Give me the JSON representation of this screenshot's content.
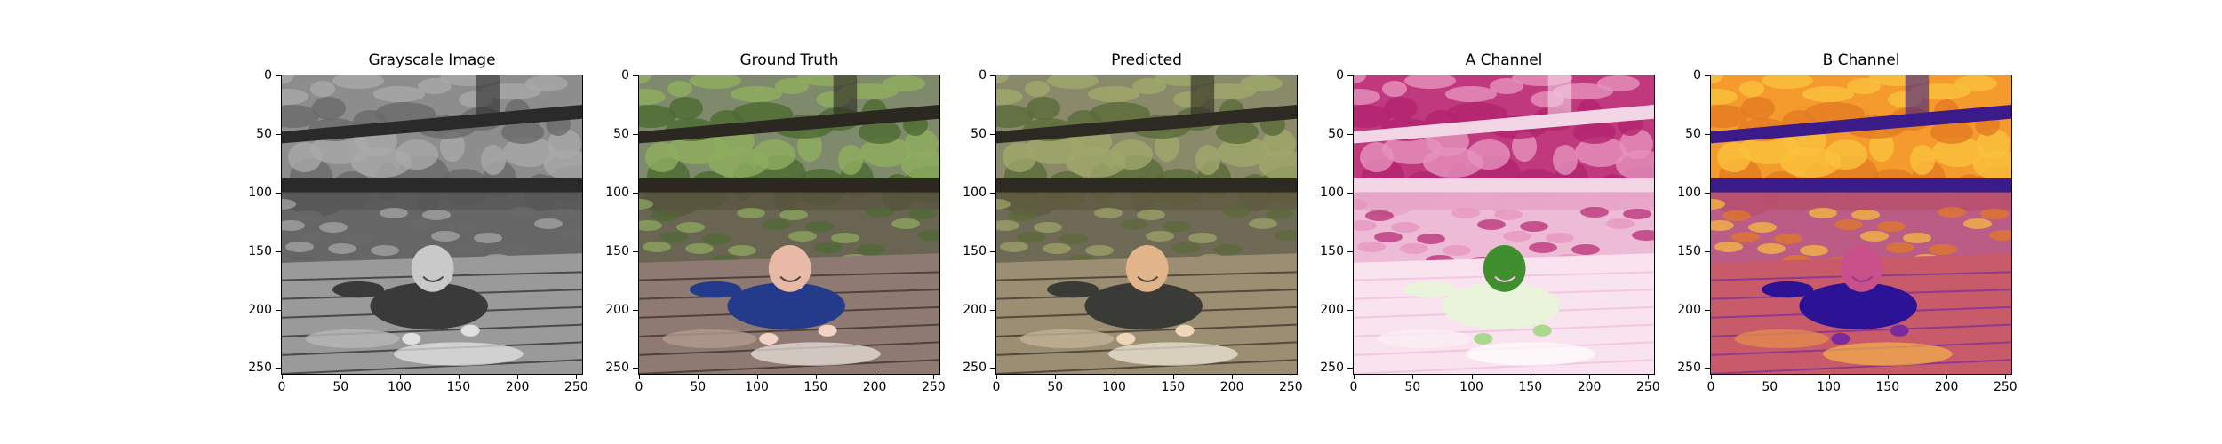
{
  "panels": [
    {
      "title": "Grayscale Image",
      "kind": "gray"
    },
    {
      "title": "Ground Truth",
      "kind": "truth"
    },
    {
      "title": "Predicted",
      "kind": "pred"
    },
    {
      "title": "A Channel",
      "kind": "a"
    },
    {
      "title": "B Channel",
      "kind": "b"
    }
  ],
  "axes": {
    "xticks": [
      "0",
      "50",
      "100",
      "150",
      "200",
      "250"
    ],
    "yticks": [
      "0",
      "50",
      "100",
      "150",
      "200",
      "250"
    ],
    "xlim": [
      0,
      255
    ],
    "ylim": [
      255,
      0
    ]
  }
}
